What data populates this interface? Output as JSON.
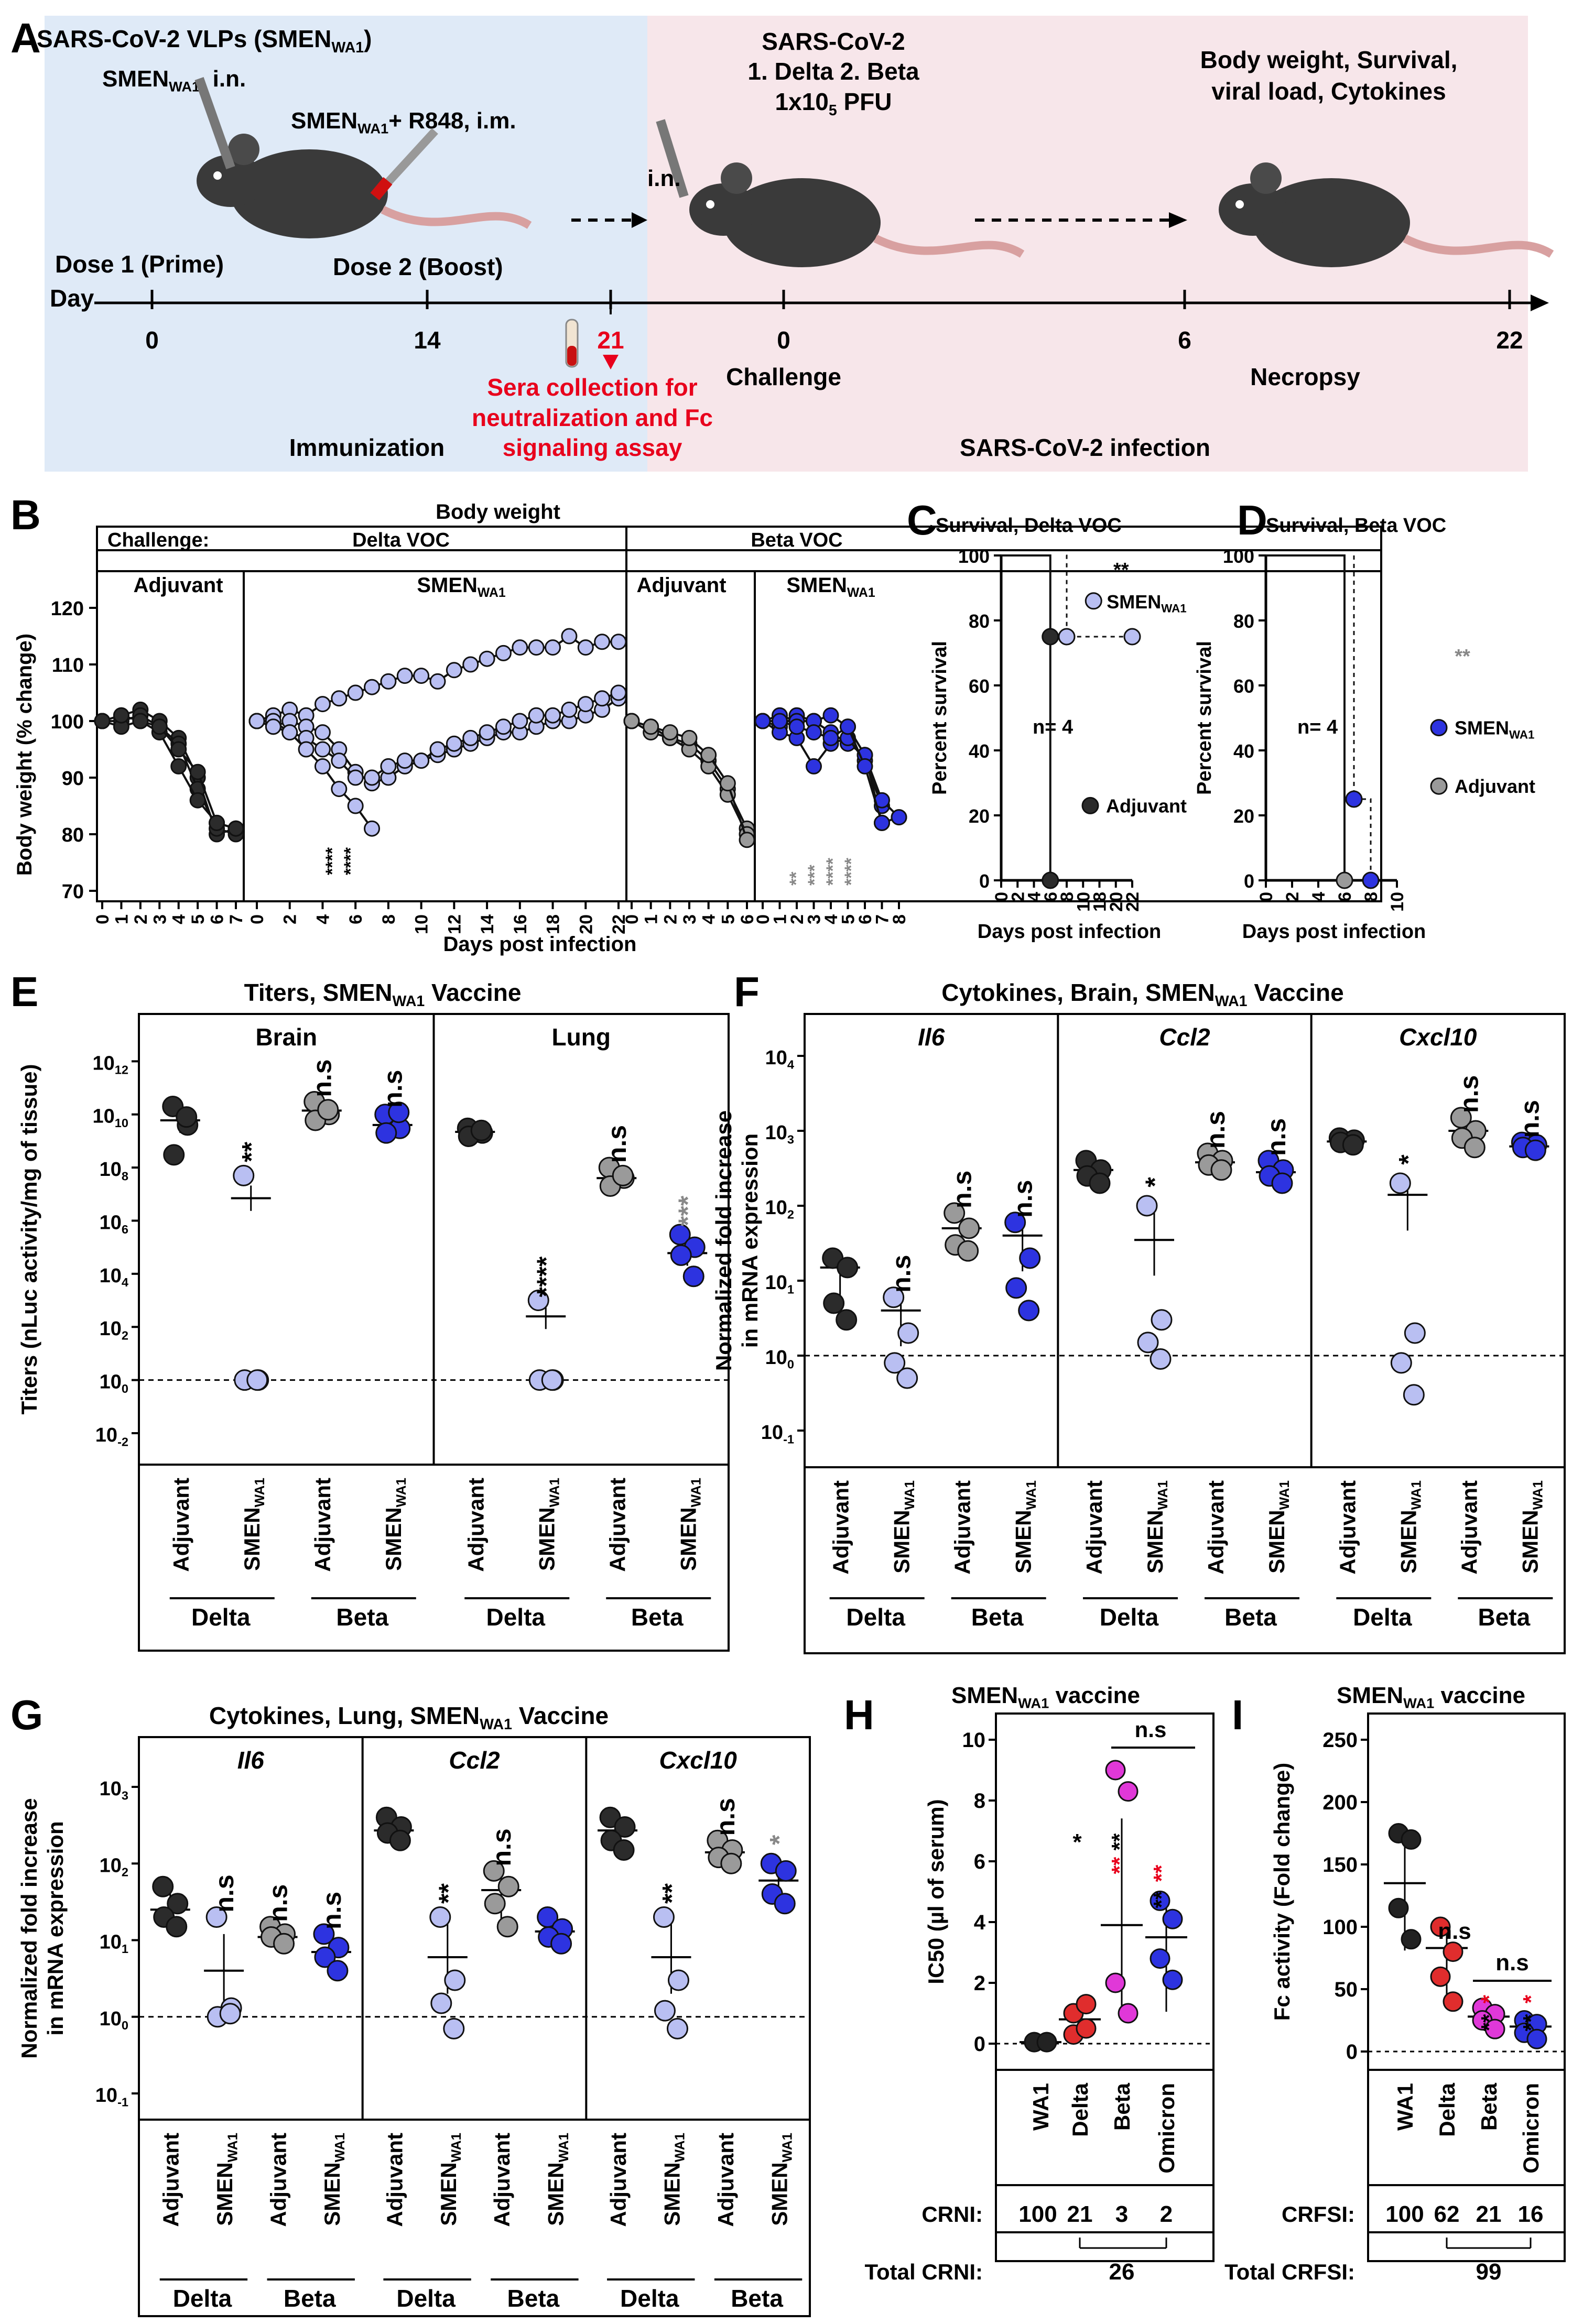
{
  "colors": {
    "adjuvant": "#2b2b2b",
    "smen_delta": "#b9bff2",
    "smen_beta": "#2d33e0",
    "adj_beta": "#9a9a9a",
    "wa1": "#222222",
    "delta": "#e02d2d",
    "beta_h": "#e038d8",
    "omicron": "#2d33e0",
    "sig_red": "#e8001c",
    "sig_gray": "#888888",
    "panelA_left": "#dfeaf7",
    "panelA_right": "#f7e6ea"
  },
  "icons": {
    "mouse": "mouse-icon",
    "syringe": "syringe-icon",
    "pipette": "pipette-icon",
    "tube": "blood-tube-icon"
  },
  "panelA": {
    "letter": "A",
    "vlp": [
      "SARS-CoV-2 VLPs (SMEN",
      "WA1",
      ")"
    ],
    "in_dose": [
      "SMEN",
      "WA1",
      ", i.n."
    ],
    "im_dose": [
      "SMEN",
      "WA1",
      "+ R848, i.m."
    ],
    "dose1": "Dose 1 (Prime)",
    "dose2": "Dose 2 (Boost)",
    "day": "Day",
    "ticks": [
      "0",
      "14",
      "21",
      "0",
      "6",
      "22"
    ],
    "challenge_title": [
      "SARS-CoV-2",
      "1. Delta 2. Beta",
      "1x10",
      "5",
      " PFU"
    ],
    "in_label": "i.n.",
    "readout": [
      "Body weight, Survival,",
      "viral load, Cytokines"
    ],
    "sera": [
      "Sera collection for",
      "neutralization and Fc",
      "signaling assay"
    ],
    "challenge": "Challenge",
    "necropsy": "Necropsy",
    "immunization": "Immunization",
    "infection": "SARS-CoV-2 infection"
  },
  "panelB": {
    "letter": "B",
    "title": "Body weight",
    "challenge_label": "Challenge:",
    "delta": "Delta VOC",
    "beta": "Beta VOC",
    "adjuvant": "Adjuvant",
    "smen": "SMEN",
    "wa1": "WA1",
    "ylabel": "Body weight (% change)",
    "xlabel": "Days post infection",
    "sig_delta": [
      "****",
      "****"
    ],
    "sig_beta": [
      "**",
      "***",
      "****",
      "****"
    ]
  },
  "panelC": {
    "letter": "C",
    "title": "Survival, Delta VOC",
    "ylabel": "Percent survival",
    "xlabel": "Days post infection",
    "n": "n= 4",
    "sig": "**",
    "smen": "SMEN",
    "wa1": "WA1",
    "adjuvant": "Adjuvant"
  },
  "panelD": {
    "letter": "D",
    "title": "Survival, Beta VOC",
    "ylabel": "Percent survival",
    "xlabel": "Days post infection",
    "n": "n= 4",
    "sig": "**",
    "smen": "SMEN",
    "wa1": "WA1",
    "adjuvant": "Adjuvant"
  },
  "panelE": {
    "letter": "E",
    "title": [
      "Titers, SMEN",
      "WA1",
      "  Vaccine"
    ],
    "sub": [
      "Brain",
      "Lung"
    ],
    "ylabel": "Titers (nLuc activity/mg of tissue)",
    "sig": [
      [
        "**",
        "n.s",
        "n.s"
      ],
      [
        "****",
        "n.s",
        "***"
      ]
    ]
  },
  "panelF": {
    "letter": "F",
    "title": [
      "Cytokines, Brain, SMEN",
      "WA1",
      "  Vaccine"
    ],
    "sub": [
      "Il6",
      "Ccl2",
      "Cxcl10"
    ],
    "ylabel": [
      "Normalized fold increase",
      "in mRNA expression"
    ],
    "sig": [
      [
        "n.s",
        "n.s",
        "n.s"
      ],
      [
        "*",
        "n.s",
        "n.s"
      ],
      [
        "*",
        "n.s",
        "n.s"
      ]
    ]
  },
  "panelG": {
    "letter": "G",
    "title": [
      "Cytokines, Lung, SMEN",
      "WA1",
      "  Vaccine"
    ],
    "sub": [
      "Il6",
      "Ccl2",
      "Cxcl10"
    ],
    "ylabel": [
      "Normalized fold increase",
      "in mRNA expression"
    ],
    "sig": [
      [
        "n.s",
        "n.s",
        "n.s"
      ],
      [
        "**",
        "n.s",
        ""
      ],
      [
        "**",
        "n.s",
        "*"
      ]
    ]
  },
  "groupLabels": {
    "adjuvant": "Adjuvant",
    "smen": "SMEN",
    "wa1": "WA1",
    "delta": "Delta",
    "beta": "Beta"
  },
  "panelH": {
    "letter": "H",
    "title": [
      "SMEN",
      "WA1",
      " vaccine"
    ],
    "ylabel": "IC50 (µl of serum)",
    "cats": [
      "WA1",
      "Delta",
      "Beta",
      "Omicron"
    ],
    "sig": [
      "*",
      "**",
      "**",
      "**",
      "**"
    ],
    "ns": "n.s",
    "crni_label": "CRNI:",
    "crni": [
      "100",
      "21",
      "3",
      "2"
    ],
    "total_label": "Total CRNI:",
    "total": "26"
  },
  "panelI": {
    "letter": "I",
    "title": [
      "SMEN",
      "WA1",
      " vaccine"
    ],
    "ylabel": "Fc activity (Fold change)",
    "cats": [
      "WA1",
      "Delta",
      "Beta",
      "Omicron"
    ],
    "ns1": "n.s",
    "ns2": "n.s",
    "sig": [
      "**",
      "*",
      "**",
      "*"
    ],
    "crfsi_label": "CRFSI:",
    "crfsi": [
      "100",
      "62",
      "21",
      "16"
    ],
    "total_label": "Total CRFSI:",
    "total": "99"
  },
  "chart_data": [
    {
      "type": "line",
      "panel": "B",
      "title": "Body weight",
      "ylabel": "Body weight (% change)",
      "xlabel": "Days post infection",
      "ylim": [
        70,
        120
      ],
      "groups": [
        {
          "challenge": "Delta VOC",
          "group": "Adjuvant",
          "x": [
            0,
            1,
            2,
            3,
            4,
            5,
            6,
            7
          ],
          "series": [
            [
              100,
              101,
              102,
              100,
              97,
              90,
              80,
              81
            ],
            [
              100,
              100,
              101,
              99,
              96,
              88,
              81,
              80
            ],
            [
              100,
              99,
              100,
              98,
              92,
              86,
              82,
              81
            ],
            [
              100,
              101,
              100,
              99,
              95,
              91,
              82,
              81
            ]
          ]
        },
        {
          "challenge": "Delta VOC",
          "group": "SMEN WA1",
          "x": [
            0,
            1,
            2,
            3,
            4,
            5,
            6,
            7,
            8,
            9,
            10,
            11,
            12,
            13,
            14,
            15,
            16,
            17,
            18,
            19,
            20,
            21,
            22
          ],
          "series": [
            [
              100,
              101,
              102,
              101,
              103,
              104,
              105,
              106,
              107,
              108,
              108,
              107,
              109,
              110,
              111,
              112,
              113,
              113,
              113,
              115,
              113,
              114,
              114
            ],
            [
              100,
              99,
              100,
              99,
              98,
              95,
              91,
              89,
              90,
              92,
              93,
              94,
              95,
              96,
              97,
              98,
              98,
              99,
              100,
              100,
              101,
              102,
              104
            ],
            [
              100,
              100,
              98,
              97,
              95,
              93,
              90,
              90,
              92,
              93,
              93,
              95,
              96,
              97,
              98,
              99,
              100,
              101,
              101,
              102,
              103,
              104,
              105
            ],
            [
              100,
              99,
              98,
              95,
              92,
              88,
              85,
              81,
              null,
              null,
              null,
              null,
              null,
              null,
              null,
              null,
              null,
              null,
              null,
              null,
              null,
              null,
              null
            ]
          ]
        },
        {
          "challenge": "Beta VOC",
          "group": "Adjuvant",
          "x": [
            0,
            1,
            2,
            3,
            4,
            5,
            6
          ],
          "series": [
            [
              100,
              99,
              97,
              96,
              93,
              88,
              81
            ],
            [
              100,
              98,
              97,
              95,
              92,
              87,
              80
            ],
            [
              100,
              99,
              98,
              97,
              94,
              89,
              79
            ]
          ]
        },
        {
          "challenge": "Beta VOC",
          "group": "SMEN WA1",
          "x": [
            0,
            1,
            2,
            3,
            4,
            5,
            6,
            7,
            8
          ],
          "series": [
            [
              100,
              99,
              101,
              100,
              98,
              96,
              94,
              82,
              83
            ],
            [
              100,
              98,
              97,
              92,
              96,
              97,
              93,
              85,
              null
            ],
            [
              100,
              101,
              100,
              100,
              101,
              99,
              94,
              86,
              83
            ],
            [
              100,
              100,
              99,
              98,
              97,
              99,
              92,
              82,
              null
            ]
          ]
        }
      ]
    },
    {
      "type": "line",
      "panel": "C",
      "title": "Survival, Delta VOC",
      "ylabel": "Percent survival",
      "xlabel": "Days post infection",
      "ylim": [
        0,
        100
      ],
      "series": [
        {
          "name": "Adjuvant",
          "x": [
            0,
            6,
            6
          ],
          "values": [
            100,
            100,
            0
          ]
        },
        {
          "name": "SMEN WA1",
          "x": [
            0,
            7,
            7,
            22
          ],
          "values": [
            100,
            100,
            75,
            75
          ]
        }
      ]
    },
    {
      "type": "line",
      "panel": "D",
      "title": "Survival, Beta VOC",
      "ylabel": "Percent survival",
      "xlabel": "Days post infection",
      "ylim": [
        0,
        100
      ],
      "series": [
        {
          "name": "Adjuvant",
          "x": [
            0,
            6,
            6
          ],
          "values": [
            100,
            100,
            0
          ]
        },
        {
          "name": "SMEN WA1",
          "x": [
            0,
            6,
            6,
            8,
            8
          ],
          "values": [
            100,
            100,
            25,
            25,
            0
          ]
        }
      ]
    },
    {
      "type": "scatter",
      "panel": "E",
      "ylabel": "Titers (nLuc activity/mg of tissue)",
      "yscale": "log",
      "ylim": [
        0.01,
        10000000000000.0
      ],
      "groups": [
        {
          "tissue": "Brain",
          "challenge": "Delta",
          "group": "Adjuvant",
          "values": [
            20000000000.0,
            4000000000.0,
            300000000.0,
            8000000000.0
          ],
          "mean": 6000000000.0
        },
        {
          "tissue": "Brain",
          "challenge": "Delta",
          "group": "SMEN WA1",
          "values": [
            50000000.0,
            1,
            1,
            1
          ],
          "mean": 7000000.0
        },
        {
          "tissue": "Brain",
          "challenge": "Beta",
          "group": "Adjuvant",
          "values": [
            30000000000.0,
            10000000000.0,
            6000000000.0,
            15000000000.0
          ],
          "mean": 14000000000.0
        },
        {
          "tissue": "Brain",
          "challenge": "Beta",
          "group": "SMEN WA1",
          "values": [
            10000000000.0,
            3000000000.0,
            2000000000.0,
            12000000000.0
          ],
          "mean": 4000000000.0
        },
        {
          "tissue": "Lung",
          "challenge": "Delta",
          "group": "Adjuvant",
          "values": [
            3000000000.0,
            2000000000.0,
            1500000000.0,
            2500000000.0
          ],
          "mean": 2200000000.0
        },
        {
          "tissue": "Lung",
          "challenge": "Delta",
          "group": "SMEN WA1",
          "values": [
            1000.0,
            1,
            1,
            1
          ],
          "mean": 250
        },
        {
          "tissue": "Lung",
          "challenge": "Beta",
          "group": "Adjuvant",
          "values": [
            100000000.0,
            40000000.0,
            20000000.0,
            50000000.0
          ],
          "mean": 40000000.0
        },
        {
          "tissue": "Lung",
          "challenge": "Beta",
          "group": "SMEN WA1",
          "values": [
            300000.0,
            100000.0,
            50000.0,
            8000.0
          ],
          "mean": 60000.0
        }
      ]
    },
    {
      "type": "scatter",
      "panel": "F",
      "ylabel": "Normalized fold increase in mRNA expression",
      "yscale": "log",
      "ylim": [
        0.1,
        10000
      ],
      "groups": [
        {
          "gene": "Il6",
          "values": [
            [
              20,
              15,
              5,
              3
            ],
            [
              6,
              2,
              0.8,
              0.5
            ],
            [
              80,
              50,
              30,
              25
            ],
            [
              60,
              20,
              8,
              4
            ]
          ],
          "means": [
            15,
            4,
            50,
            40
          ]
        },
        {
          "gene": "Ccl2",
          "values": [
            [
              400,
              300,
              250,
              200
            ],
            [
              100,
              3,
              1.5,
              0.9
            ],
            [
              500,
              400,
              350,
              300
            ],
            [
              400,
              300,
              250,
              200
            ]
          ],
          "means": [
            300,
            35,
            380,
            280
          ]
        },
        {
          "gene": "Cxcl10",
          "values": [
            [
              800,
              750,
              700,
              650
            ],
            [
              200,
              2,
              0.8,
              0.3
            ],
            [
              1500,
              1000,
              800,
              600
            ],
            [
              700,
              650,
              600,
              550
            ]
          ],
          "means": [
            720,
            140,
            1000,
            620
          ]
        }
      ]
    },
    {
      "type": "scatter",
      "panel": "G",
      "ylabel": "Normalized fold increase in mRNA expression",
      "yscale": "log",
      "ylim": [
        0.1,
        1000
      ],
      "groups": [
        {
          "gene": "Il6",
          "values": [
            [
              50,
              30,
              20,
              15
            ],
            [
              20,
              1.3,
              1.0,
              1.1
            ],
            [
              15,
              12,
              11,
              9
            ],
            [
              12,
              8,
              6,
              4
            ]
          ],
          "means": [
            25,
            4,
            11,
            7
          ]
        },
        {
          "gene": "Ccl2",
          "values": [
            [
              400,
              300,
              250,
              200
            ],
            [
              20,
              3,
              1.5,
              0.7
            ],
            [
              80,
              50,
              30,
              15
            ],
            [
              20,
              14,
              11,
              9
            ]
          ],
          "means": [
            270,
            6,
            45,
            13
          ]
        },
        {
          "gene": "Cxcl10",
          "values": [
            [
              400,
              300,
              200,
              150
            ],
            [
              20,
              3,
              1.2,
              0.7
            ],
            [
              200,
              150,
              120,
              100
            ],
            [
              100,
              80,
              40,
              30
            ]
          ],
          "means": [
            270,
            6,
            140,
            60
          ]
        }
      ]
    },
    {
      "type": "scatter",
      "panel": "H",
      "ylabel": "IC50 (µl of serum)",
      "ylim": [
        0,
        10
      ],
      "categories": [
        "WA1",
        "Delta",
        "Beta",
        "Omicron"
      ],
      "values": [
        [
          0.05,
          0.05,
          0.05,
          0.05
        ],
        [
          0.3,
          0.5,
          1.0,
          1.3
        ],
        [
          9,
          8.3,
          2.0,
          1.0
        ],
        [
          4.7,
          4.1,
          2.8,
          2.1
        ]
      ],
      "means": [
        0.05,
        0.8,
        3.9,
        3.5
      ]
    },
    {
      "type": "scatter",
      "panel": "I",
      "ylabel": "Fc activity (Fold change)",
      "ylim": [
        0,
        250
      ],
      "categories": [
        "WA1",
        "Delta",
        "Beta",
        "Omicron"
      ],
      "values": [
        [
          175,
          170,
          115,
          90
        ],
        [
          100,
          80,
          60,
          40
        ],
        [
          35,
          30,
          25,
          18
        ],
        [
          25,
          22,
          15,
          10
        ]
      ],
      "means": [
        135,
        83,
        28,
        20
      ]
    }
  ]
}
